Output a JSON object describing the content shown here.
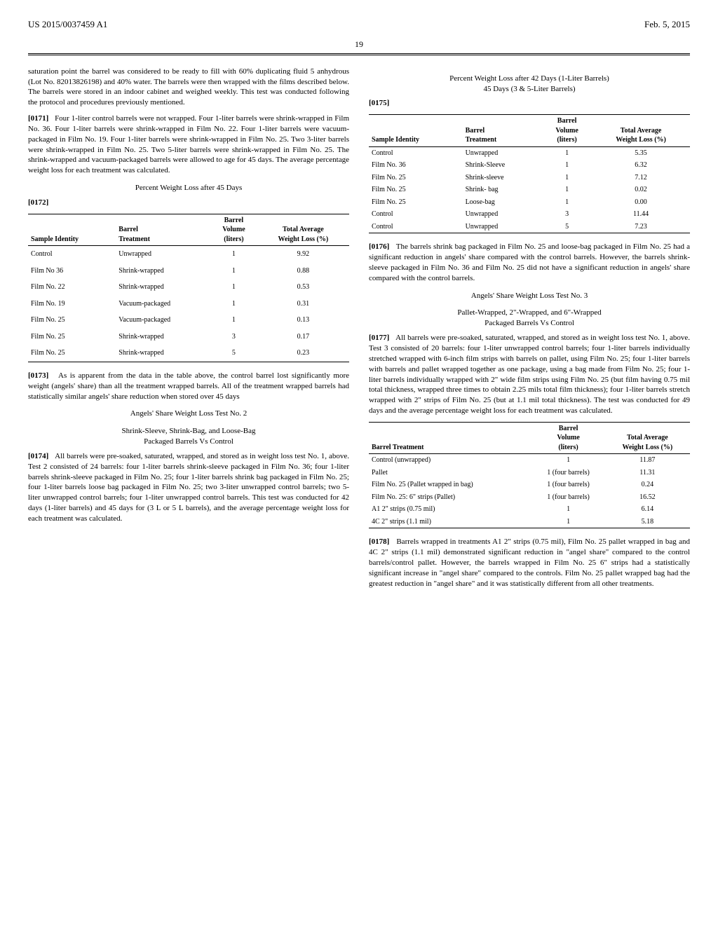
{
  "header": {
    "pub_number": "US 2015/0037459 A1",
    "pub_date": "Feb. 5, 2015",
    "page_number": "19"
  },
  "left": {
    "intro": "saturation point the barrel was considered to be ready to fill with 60% duplicating fluid 5 anhydrous (Lot No. 82013826198) and 40% water. The barrels were then wrapped with the films described below. The barrels were stored in an indoor cabinet and weighed weekly. This test was conducted following the protocol and procedures previously mentioned.",
    "p0171_num": "[0171]",
    "p0171": "Four 1-liter control barrels were not wrapped. Four 1-liter barrels were shrink-wrapped in Film No. 36. Four 1-liter barrels were shrink-wrapped in Film No. 22. Four 1-liter barrels were vacuum-packaged in Film No. 19. Four 1-liter barrels were shrink-wrapped in Film No. 25. Two 3-liter barrels were shrink-wrapped in Film No. 25. Two 5-liter barrels were shrink-wrapped in Film No. 25. The shrink-wrapped and vacuum-packaged barrels were allowed to age for 45 days. The average percentage weight loss for each treatment was calculated.",
    "table1_title": "Percent Weight Loss after 45 Days",
    "p0172_num": "[0172]",
    "table1": {
      "cols": [
        "Sample Identity",
        "Barrel\nTreatment",
        "Barrel\nVolume\n(liters)",
        "Total Average\nWeight Loss (%)"
      ],
      "rows": [
        [
          "Control",
          "Unwrapped",
          "1",
          "9.92"
        ],
        [
          "Film No 36",
          "Shrink-wrapped",
          "1",
          "0.88"
        ],
        [
          "Film No. 22",
          "Shrink-wrapped",
          "1",
          "0.53"
        ],
        [
          "Film No. 19",
          "Vacuum-packaged",
          "1",
          "0.31"
        ],
        [
          "Film No. 25",
          "Vacuum-packaged",
          "1",
          "0.13"
        ],
        [
          "Film No. 25",
          "Shrink-wrapped",
          "3",
          "0.17"
        ],
        [
          "Film No. 25",
          "Shrink-wrapped",
          "5",
          "0.23"
        ]
      ]
    },
    "p0173_num": "[0173]",
    "p0173": "As is apparent from the data in the table above, the control barrel lost significantly more weight (angels' share) than all the treatment wrapped barrels. All of the treatment wrapped barrels had statistically similar angels' share reduction when stored over 45 days",
    "test2_head": "Angels' Share Weight Loss Test No. 2",
    "test2_sub": "Shrink-Sleeve, Shrink-Bag, and Loose-Bag\nPackaged Barrels Vs Control",
    "p0174_num": "[0174]",
    "p0174": "All barrels were pre-soaked, saturated, wrapped, and stored as in weight loss test No. 1, above. Test 2 consisted of 24 barrels: four 1-liter barrels shrink-sleeve packaged in Film No. 36; four 1-liter barrels shrink-sleeve packaged in Film No. 25; four 1-liter barrels shrink bag packaged in Film No. 25; four 1-liter barrels loose bag packaged in Film No. 25; two 3-liter unwrapped control barrels; two 5-liter unwrapped control barrels; four 1-liter unwrapped control barrels. This test was conducted for 42 days (1-liter barrels) and 45 days for (3 L or 5 L barrels), and the average percentage weight loss for each treatment was calculated."
  },
  "right": {
    "table2_title": "Percent Weight Loss after 42 Days (1-Liter Barrels)\n45 Days (3 & 5-Liter Barrels)",
    "p0175_num": "[0175]",
    "table2": {
      "cols": [
        "Sample Identity",
        "Barrel\nTreatment",
        "Barrel\nVolume\n(liters)",
        "Total Average\nWeight Loss (%)"
      ],
      "rows": [
        [
          "Control",
          "Unwrapped",
          "1",
          "5.35"
        ],
        [
          "Film No. 36",
          "Shrink-Sleeve",
          "1",
          "6.32"
        ],
        [
          "Film No. 25",
          "Shrink-sleeve",
          "1",
          "7.12"
        ],
        [
          "Film No. 25",
          "Shrink- bag",
          "1",
          "0.02"
        ],
        [
          "Film No. 25",
          "Loose-bag",
          "1",
          "0.00"
        ],
        [
          "Control",
          "Unwrapped",
          "3",
          "11.44"
        ],
        [
          "Control",
          "Unwrapped",
          "5",
          "7.23"
        ]
      ]
    },
    "p0176_num": "[0176]",
    "p0176": "The barrels shrink bag packaged in Film No. 25 and loose-bag packaged in Film No. 25 had a significant reduction in angels' share compared with the control barrels. However, the barrels shrink-sleeve packaged in Film No. 36 and Film No. 25 did not have a significant reduction in angels' share compared with the control barrels.",
    "test3_head": "Angels' Share Weight Loss Test No. 3",
    "test3_sub": "Pallet-Wrapped, 2\"-Wrapped, and 6\"-Wrapped\nPackaged Barrels Vs Control",
    "p0177_num": "[0177]",
    "p0177": "All barrels were pre-soaked, saturated, wrapped, and stored as in weight loss test No. 1, above. Test 3 consisted of 20 barrels: four 1-liter unwrapped control barrels; four 1-liter barrels individually stretched wrapped with 6-inch film strips with barrels on pallet, using Film No. 25; four 1-liter barrels with barrels and pallet wrapped together as one package, using a bag made from Film No. 25; four 1-liter barrels individually wrapped with 2\" wide film strips using Film No. 25 (but film having 0.75 mil total thickness, wrapped three times to obtain 2.25 mils total film thickness); four 1-liter barrels stretch wrapped with 2\" strips of Film No. 25 (but at 1.1 mil total thickness). The test was conducted for 49 days and the average percentage weight loss for each treatment was calculated.",
    "table3": {
      "cols": [
        "Barrel Treatment",
        "Barrel\nVolume\n(liters)",
        "Total Average\nWeight Loss (%)"
      ],
      "rows": [
        [
          "Control (unwrapped)",
          "1",
          "11.87"
        ],
        [
          "Pallet",
          "1 (four barrels)",
          "11.31"
        ],
        [
          "Film No. 25 (Pallet wrapped in bag)",
          "1 (four barrels)",
          "0.24"
        ],
        [
          "Film No. 25: 6\" strips (Pallet)",
          "1 (four barrels)",
          "16.52"
        ],
        [
          "A1 2\" strips (0.75 mil)",
          "1",
          "6.14"
        ],
        [
          "4C 2\" strips (1.1 mil)",
          "1",
          "5.18"
        ]
      ]
    },
    "p0178_num": "[0178]",
    "p0178": "Barrels wrapped in treatments A1 2\" strips (0.75 mil), Film No. 25 pallet wrapped in bag and 4C 2\" strips (1.1 mil) demonstrated significant reduction in \"angel share\" compared to the control barrels/control pallet. However, the barrels wrapped in Film No. 25 6\" strips had a statistically significant increase in \"angel share\" compared to the controls. Film No. 25 pallet wrapped bag had the greatest reduction in \"angel share\" and it was statistically different from all other treatments."
  }
}
